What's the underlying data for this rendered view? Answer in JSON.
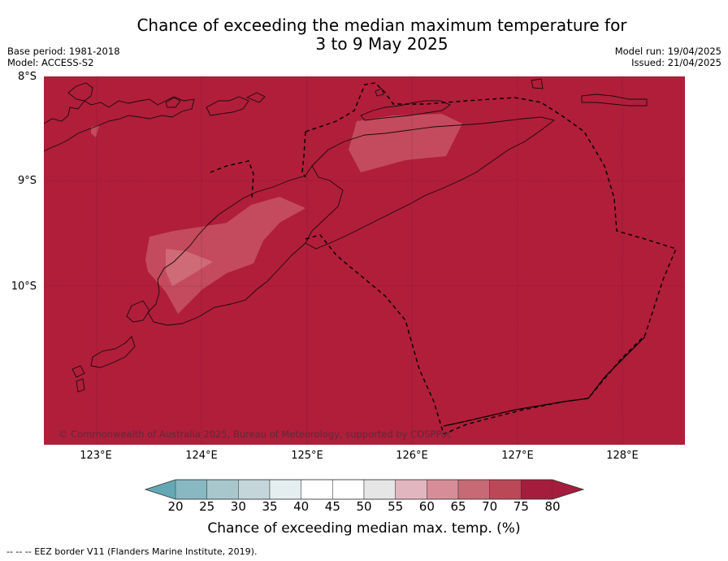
{
  "header": {
    "title_line1": "Chance of exceeding the median maximum temperature for",
    "title_line2": "3 to 9 May 2025",
    "base_period": "Base period: 1981-2018",
    "model": "Model: ACCESS-S2",
    "model_run": "Model run: 19/04/2025",
    "issued": "Issued: 21/04/2025"
  },
  "map": {
    "lat_labels": [
      "8°S",
      "9°S",
      "10°S"
    ],
    "lon_labels": [
      "123°E",
      "124°E",
      "125°E",
      "126°E",
      "127°E",
      "128°E"
    ],
    "copyright": "© Commonwealth of Australia 2025, Bureau of Meteorology, supported by COSPPac",
    "background_category": "80+",
    "colors": {
      "above_80": "#b01e3a",
      "75_80": "#c34b5d",
      "70_75": "#cf6a77",
      "coast": "#1a0a0e",
      "eez": "#000000"
    }
  },
  "colorbar": {
    "ticks": [
      "20",
      "25",
      "30",
      "35",
      "40",
      "45",
      "50",
      "55",
      "60",
      "65",
      "70",
      "75",
      "80"
    ],
    "colors": [
      "#63a8b4",
      "#88b8c2",
      "#a7c7cc",
      "#c5d6da",
      "#e4eef0",
      "#ffffff",
      "#ffffff",
      "#e6e6e6",
      "#e2b6bf",
      "#d68d98",
      "#c86a76",
      "#bb4857",
      "#a61c3c"
    ],
    "label": "Chance of exceeding median max. temp. (%)"
  },
  "footnote": "--  --  -- EEZ border V11 (Flanders Marine Institute, 2019)."
}
